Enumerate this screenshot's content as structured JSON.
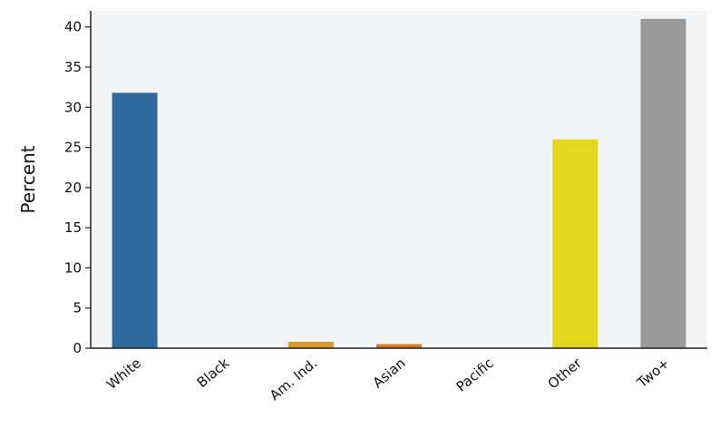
{
  "chart_data": {
    "type": "bar",
    "title": "",
    "xlabel": "",
    "ylabel": "Percent",
    "categories": [
      "White",
      "Black",
      "Am. Ind.",
      "Asian",
      "Pacific",
      "Other",
      "Two+"
    ],
    "values": [
      31.8,
      0.0,
      0.8,
      0.5,
      0.0,
      26.0,
      41.0
    ],
    "colors": [
      "#2e6a9e",
      "#2e6a9e",
      "#d99a2b",
      "#d07a25",
      "#888888",
      "#e4d81e",
      "#999999"
    ],
    "ylim": [
      0,
      42
    ],
    "yticks": [
      0,
      5,
      10,
      15,
      20,
      25,
      30,
      35,
      40
    ],
    "grid": false,
    "legend": "none"
  }
}
